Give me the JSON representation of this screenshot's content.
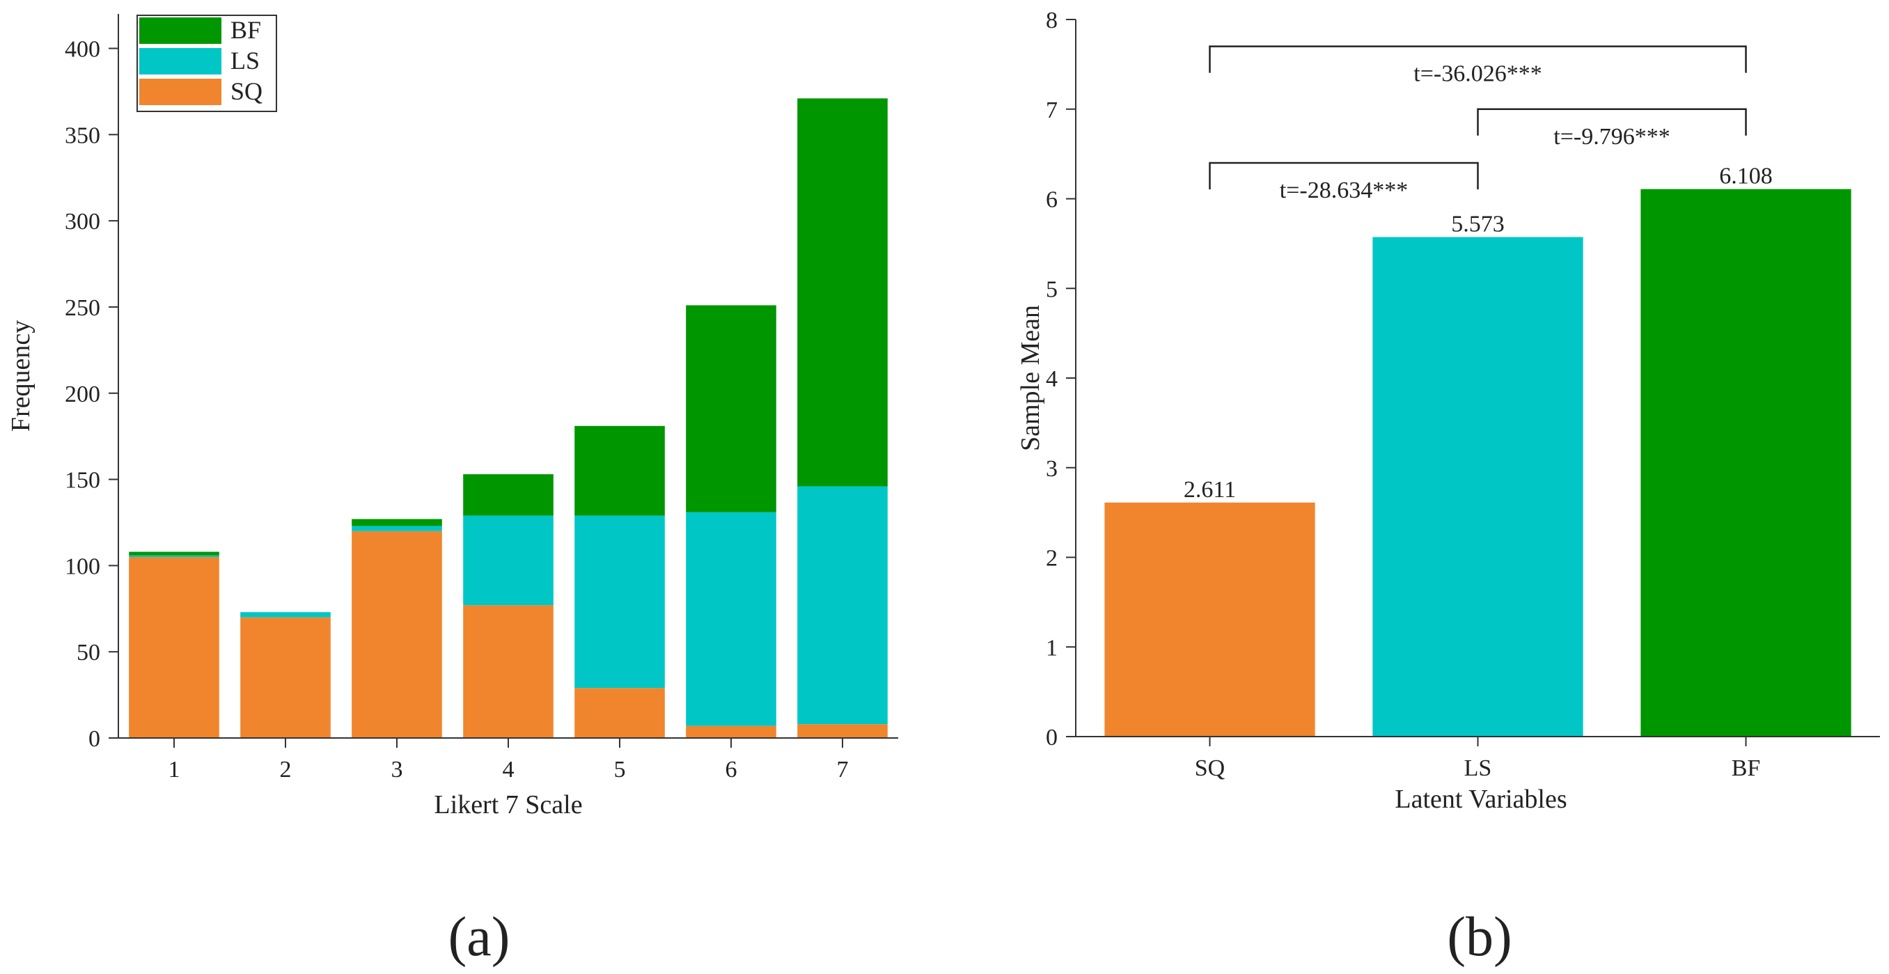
{
  "colors": {
    "SQ": "#f0852d",
    "LS": "#00c6c6",
    "BF": "#009600"
  },
  "chart_data": [
    {
      "type": "bar",
      "stacked": true,
      "panel_label": "(a)",
      "categories": [
        "1",
        "2",
        "3",
        "4",
        "5",
        "6",
        "7"
      ],
      "series": [
        {
          "name": "SQ",
          "values": [
            105,
            70,
            120,
            77,
            29,
            7,
            8
          ]
        },
        {
          "name": "LS",
          "values": [
            1,
            3,
            3,
            52,
            100,
            124,
            138
          ]
        },
        {
          "name": "BF",
          "values": [
            2,
            0,
            4,
            24,
            52,
            120,
            225
          ]
        }
      ],
      "legend": [
        "BF",
        "LS",
        "SQ"
      ],
      "legend_position": "top-left",
      "xlabel": "Likert 7 Scale",
      "ylabel": "Frequency",
      "ylim": [
        0,
        420
      ],
      "yticks": [
        0,
        50,
        100,
        150,
        200,
        250,
        300,
        350,
        400
      ]
    },
    {
      "type": "bar",
      "panel_label": "(b)",
      "categories": [
        "SQ",
        "LS",
        "BF"
      ],
      "values": [
        2.611,
        5.573,
        6.108
      ],
      "data_labels": [
        "2.611",
        "5.573",
        "6.108"
      ],
      "xlabel": "Latent Variables",
      "ylabel": "Sample Mean",
      "ylim": [
        0,
        8
      ],
      "yticks": [
        0,
        1,
        2,
        3,
        4,
        5,
        6,
        7,
        8
      ],
      "annotations": [
        {
          "from": "SQ",
          "to": "LS",
          "text": "t=-28.634***",
          "level": 6.4
        },
        {
          "from": "LS",
          "to": "BF",
          "text": "t=-9.796***",
          "level": 7.0
        },
        {
          "from": "SQ",
          "to": "BF",
          "text": "t=-36.026***",
          "level": 7.7
        }
      ]
    }
  ]
}
